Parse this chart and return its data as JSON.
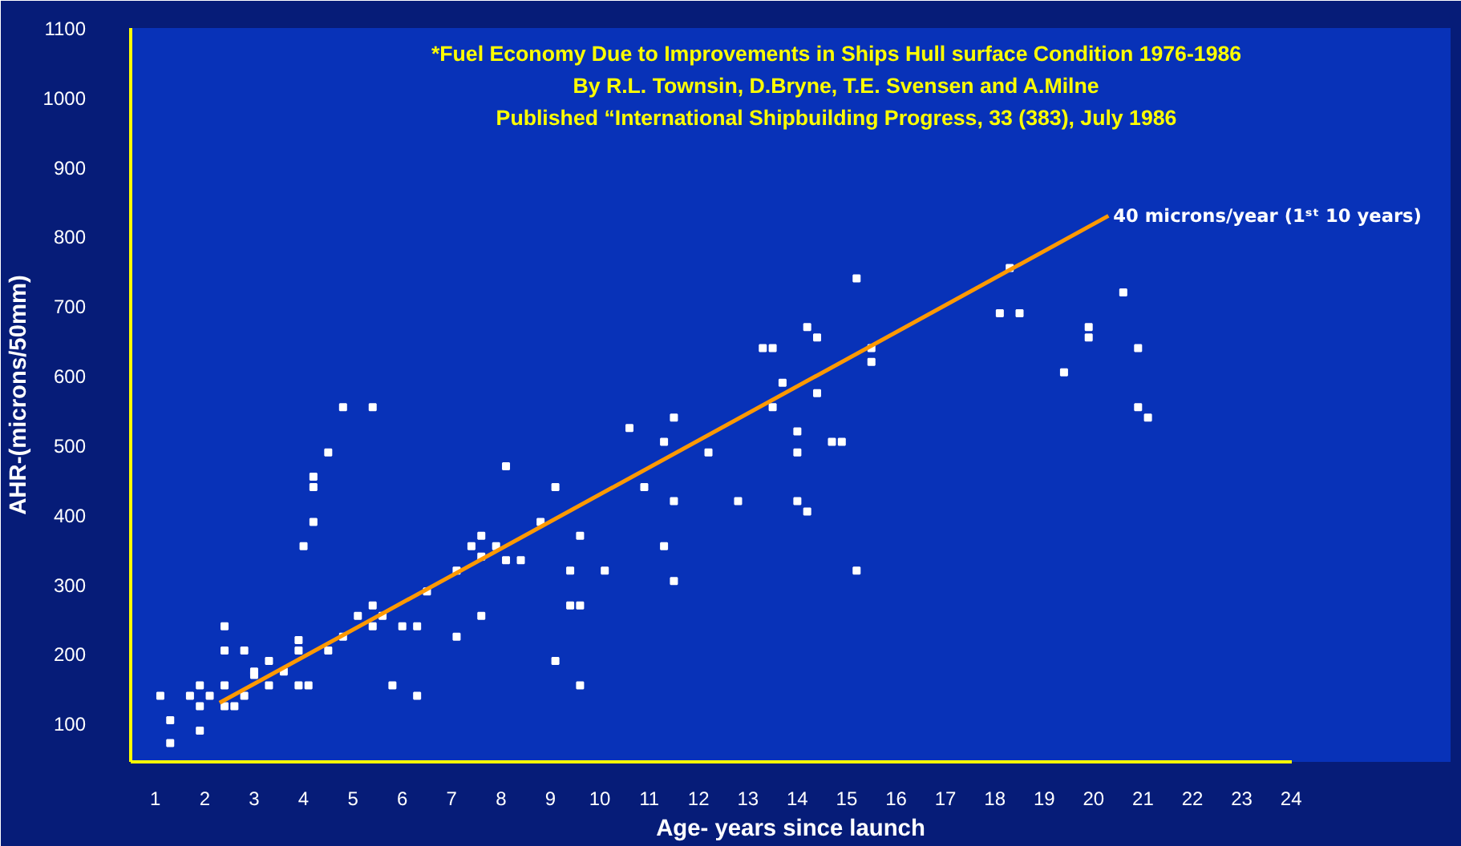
{
  "chart_data": {
    "type": "scatter",
    "title": "*Fuel Economy Due to Improvements in Ships Hull surface Condition 1976-1986",
    "subtitle": "By R.L. Townsin, D.Bryne, T.E. Svensen and A.Milne\nPublished “International Shipbuilding Progress, 33 (383), July 1986",
    "xlabel": "Age- years since launch",
    "ylabel": "AHR-(microns/50mm)",
    "xlim": [
      0.5,
      24
    ],
    "ylim": [
      45,
      1100
    ],
    "xticks": [
      1,
      2,
      3,
      4,
      5,
      6,
      7,
      8,
      9,
      10,
      11,
      12,
      13,
      14,
      15,
      16,
      17,
      18,
      19,
      20,
      21,
      22,
      23,
      24
    ],
    "yticks": [
      100,
      200,
      300,
      400,
      500,
      600,
      700,
      800,
      900,
      1000,
      1100
    ],
    "grid": false,
    "series": [
      {
        "marker": "square",
        "color": "#ffffff",
        "x": [
          1.1,
          1.3,
          1.3,
          1.7,
          1.9,
          1.9,
          1.9,
          2.1,
          2.4,
          2.4,
          2.4,
          2.4,
          2.6,
          2.8,
          2.8,
          3.0,
          3.0,
          3.3,
          3.3,
          3.6,
          3.9,
          3.9,
          3.9,
          4.0,
          4.1,
          4.2,
          4.2,
          4.2,
          4.5,
          4.5,
          4.8,
          4.8,
          5.1,
          5.4,
          5.4,
          5.4,
          5.6,
          5.8,
          6.0,
          6.3,
          6.3,
          6.5,
          7.1,
          7.1,
          7.4,
          7.6,
          7.6,
          7.6,
          7.9,
          8.1,
          8.1,
          8.4,
          8.8,
          9.1,
          9.1,
          9.4,
          9.4,
          9.6,
          9.6,
          9.6,
          10.1,
          10.6,
          10.9,
          11.3,
          11.3,
          11.5,
          11.5,
          11.5,
          12.2,
          12.8,
          13.3,
          13.5,
          13.5,
          13.7,
          14.0,
          14.0,
          14.0,
          14.2,
          14.2,
          14.4,
          14.4,
          14.7,
          14.9,
          15.2,
          15.2,
          15.5,
          15.5,
          18.1,
          18.3,
          18.5,
          19.4,
          19.9,
          19.9,
          20.6,
          20.9,
          20.9,
          21.1
        ],
        "values": [
          140,
          105,
          72,
          140,
          155,
          125,
          90,
          140,
          240,
          205,
          155,
          125,
          125,
          140,
          205,
          175,
          170,
          155,
          190,
          175,
          205,
          220,
          155,
          355,
          155,
          390,
          440,
          455,
          490,
          205,
          225,
          555,
          255,
          555,
          270,
          240,
          255,
          155,
          240,
          240,
          140,
          290,
          225,
          320,
          355,
          340,
          370,
          255,
          355,
          470,
          335,
          335,
          390,
          440,
          190,
          320,
          270,
          370,
          270,
          155,
          320,
          525,
          440,
          505,
          355,
          540,
          420,
          305,
          490,
          420,
          640,
          555,
          640,
          590,
          520,
          490,
          420,
          670,
          405,
          655,
          575,
          505,
          505,
          740,
          320,
          640,
          620,
          690,
          755,
          690,
          605,
          670,
          655,
          720,
          640,
          555,
          540
        ]
      },
      {
        "type": "line",
        "color": "#ff9900",
        "x": [
          2.3,
          20.3
        ],
        "values": [
          130,
          830
        ]
      }
    ],
    "annotations": [
      {
        "text": "40 microns/year (1ˢᵗ 10 years)",
        "x": 20.3,
        "y": 830
      }
    ]
  }
}
